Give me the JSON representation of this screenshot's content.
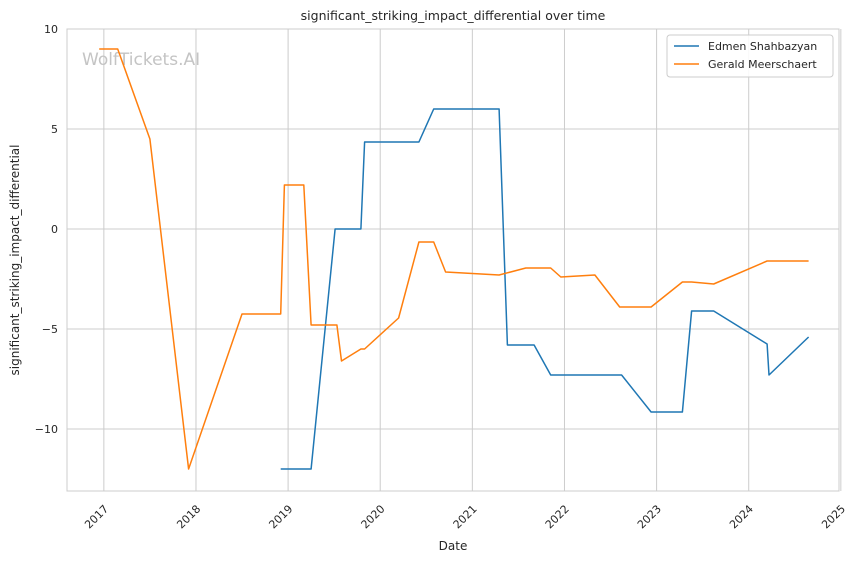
{
  "chart_data": {
    "type": "line",
    "title": "significant_striking_impact_differential over time",
    "xlabel": "Date",
    "ylabel": "significant_striking_impact_differential",
    "watermark": "WolfTickets.AI",
    "xlim": [
      2016.6,
      2024.98
    ],
    "ylim": [
      -13.1,
      10
    ],
    "x_ticks": [
      2017,
      2018,
      2019,
      2020,
      2021,
      2022,
      2023,
      2024,
      2025
    ],
    "x_tick_labels": [
      "2017",
      "2018",
      "2019",
      "2020",
      "2021",
      "2022",
      "2023",
      "2024",
      "2025"
    ],
    "y_ticks": [
      10,
      5,
      0,
      -5,
      -10
    ],
    "y_tick_labels": [
      "10",
      "5",
      "0",
      "−5",
      "−10"
    ],
    "grid": true,
    "legend_position": "top-right",
    "series": [
      {
        "name": "Edmen Shahbazyan",
        "color": "#1f77b4",
        "x": [
          2018.92,
          2019.25,
          2019.51,
          2019.79,
          2019.83,
          2020.42,
          2020.58,
          2021.29,
          2021.38,
          2021.67,
          2021.85,
          2022.62,
          2022.94,
          2023.28,
          2023.38,
          2023.62,
          2024.2,
          2024.22,
          2024.65
        ],
        "y": [
          -12,
          -12,
          0,
          0,
          4.35,
          4.35,
          6,
          6,
          -5.8,
          -5.8,
          -7.3,
          -7.3,
          -9.15,
          -9.15,
          -4.1,
          -4.1,
          -5.75,
          -7.3,
          -5.4
        ]
      },
      {
        "name": "Gerald Meerschaert",
        "color": "#ff7f0e",
        "x": [
          2016.95,
          2017.15,
          2017.5,
          2017.92,
          2018.5,
          2018.92,
          2018.96,
          2019.17,
          2019.25,
          2019.53,
          2019.58,
          2019.79,
          2019.83,
          2020.2,
          2020.42,
          2020.58,
          2020.71,
          2021.29,
          2021.58,
          2021.85,
          2021.96,
          2022.33,
          2022.6,
          2022.94,
          2023.28,
          2023.38,
          2023.62,
          2024.2,
          2024.65
        ],
        "y": [
          9,
          9,
          4.5,
          -12,
          -4.25,
          -4.25,
          2.2,
          2.2,
          -4.8,
          -4.8,
          -6.6,
          -6,
          -6,
          -4.45,
          -0.65,
          -0.65,
          -2.15,
          -2.3,
          -1.95,
          -1.95,
          -2.4,
          -2.3,
          -3.9,
          -3.9,
          -2.65,
          -2.65,
          -2.75,
          -1.6,
          -1.6
        ]
      }
    ]
  }
}
